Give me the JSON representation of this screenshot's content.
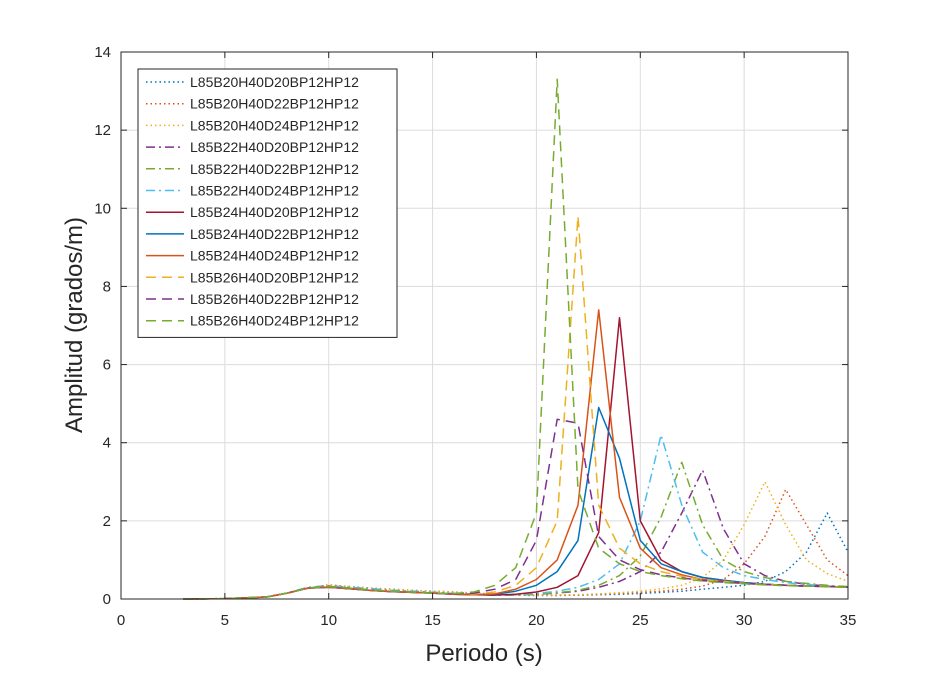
{
  "chart_data": {
    "type": "line",
    "title": "",
    "xlabel": "Periodo (s)",
    "ylabel": "Amplitud (grados/m)",
    "xlim": [
      0,
      35
    ],
    "ylim": [
      0,
      14
    ],
    "xticks": [
      0,
      5,
      10,
      15,
      20,
      25,
      30,
      35
    ],
    "yticks": [
      0,
      2,
      4,
      6,
      8,
      10,
      12,
      14
    ],
    "grid": true,
    "legend_position": "top-left",
    "series": [
      {
        "name": "L85B20H40D20BP12HP12",
        "color": "#0072BD",
        "dash": "dotted",
        "x": [
          3,
          5,
          7,
          8,
          9,
          10,
          11,
          12,
          13,
          14,
          15,
          16,
          17,
          18,
          19,
          20,
          21,
          22,
          23,
          24,
          25,
          26,
          27,
          28,
          29,
          30,
          31,
          32,
          33,
          34,
          35
        ],
        "y": [
          0,
          0.01,
          0.05,
          0.15,
          0.28,
          0.35,
          0.32,
          0.28,
          0.25,
          0.22,
          0.2,
          0.18,
          0.15,
          0.12,
          0.1,
          0.09,
          0.09,
          0.1,
          0.11,
          0.12,
          0.14,
          0.17,
          0.2,
          0.25,
          0.3,
          0.35,
          0.45,
          0.7,
          1.2,
          2.2,
          1.2
        ]
      },
      {
        "name": "L85B20H40D22BP12HP12",
        "color": "#D95319",
        "dash": "dotted",
        "x": [
          3,
          5,
          7,
          8,
          9,
          10,
          11,
          12,
          13,
          14,
          15,
          16,
          17,
          18,
          19,
          20,
          21,
          22,
          23,
          24,
          25,
          26,
          27,
          28,
          29,
          30,
          31,
          32,
          33,
          34,
          35
        ],
        "y": [
          0,
          0.01,
          0.05,
          0.15,
          0.28,
          0.36,
          0.32,
          0.28,
          0.25,
          0.22,
          0.2,
          0.18,
          0.15,
          0.12,
          0.1,
          0.1,
          0.1,
          0.1,
          0.12,
          0.14,
          0.17,
          0.2,
          0.25,
          0.33,
          0.5,
          0.9,
          1.6,
          2.8,
          1.9,
          1.0,
          0.6
        ]
      },
      {
        "name": "L85B20H40D24BP12HP12",
        "color": "#EDB120",
        "dash": "dotted",
        "x": [
          3,
          5,
          7,
          8,
          9,
          10,
          11,
          12,
          13,
          14,
          15,
          16,
          17,
          18,
          19,
          20,
          21,
          22,
          23,
          24,
          25,
          26,
          27,
          28,
          29,
          30,
          31,
          32,
          33,
          34,
          35
        ],
        "y": [
          0,
          0.01,
          0.05,
          0.15,
          0.28,
          0.35,
          0.32,
          0.28,
          0.25,
          0.22,
          0.2,
          0.18,
          0.15,
          0.12,
          0.1,
          0.1,
          0.1,
          0.11,
          0.13,
          0.16,
          0.2,
          0.26,
          0.35,
          0.55,
          1.0,
          1.9,
          3.0,
          1.9,
          1.0,
          0.65,
          0.45
        ]
      },
      {
        "name": "L85B22H40D20BP12HP12",
        "color": "#7E2F8E",
        "dash": "dashdot",
        "x": [
          3,
          5,
          7,
          8,
          9,
          10,
          11,
          12,
          13,
          14,
          15,
          16,
          17,
          18,
          19,
          20,
          21,
          22,
          23,
          24,
          25,
          26,
          27,
          28,
          29,
          30,
          31,
          32,
          33,
          34,
          35
        ],
        "y": [
          0,
          0.01,
          0.05,
          0.15,
          0.3,
          0.33,
          0.3,
          0.26,
          0.22,
          0.2,
          0.17,
          0.14,
          0.12,
          0.1,
          0.1,
          0.12,
          0.15,
          0.2,
          0.3,
          0.45,
          0.7,
          1.2,
          2.2,
          3.3,
          1.8,
          0.9,
          0.6,
          0.45,
          0.38,
          0.33,
          0.3
        ]
      },
      {
        "name": "L85B22H40D22BP12HP12",
        "color": "#77AC30",
        "dash": "dashdot",
        "x": [
          3,
          5,
          7,
          8,
          9,
          10,
          11,
          12,
          13,
          14,
          15,
          16,
          17,
          18,
          19,
          20,
          21,
          22,
          23,
          24,
          25,
          26,
          27,
          28,
          29,
          30,
          31,
          32,
          33,
          34,
          35
        ],
        "y": [
          0,
          0.01,
          0.05,
          0.15,
          0.3,
          0.34,
          0.3,
          0.26,
          0.22,
          0.2,
          0.17,
          0.14,
          0.12,
          0.1,
          0.1,
          0.12,
          0.16,
          0.22,
          0.35,
          0.6,
          1.1,
          2.1,
          3.5,
          1.9,
          1.0,
          0.7,
          0.55,
          0.45,
          0.4,
          0.35,
          0.32
        ]
      },
      {
        "name": "L85B22H40D24BP12HP12",
        "color": "#4DBEEE",
        "dash": "dashdot",
        "x": [
          3,
          5,
          7,
          8,
          9,
          10,
          11,
          12,
          13,
          14,
          15,
          16,
          17,
          18,
          19,
          20,
          21,
          22,
          23,
          24,
          25,
          26,
          27,
          28,
          29,
          30,
          31,
          32,
          33,
          34,
          35
        ],
        "y": [
          0,
          0.01,
          0.05,
          0.15,
          0.3,
          0.33,
          0.3,
          0.26,
          0.22,
          0.2,
          0.17,
          0.14,
          0.12,
          0.1,
          0.11,
          0.14,
          0.2,
          0.3,
          0.5,
          0.9,
          2.0,
          4.2,
          2.4,
          1.2,
          0.8,
          0.6,
          0.5,
          0.42,
          0.37,
          0.33,
          0.3
        ]
      },
      {
        "name": "L85B24H40D20BP12HP12",
        "color": "#A2142F",
        "dash": "solid",
        "x": [
          3,
          5,
          7,
          8,
          9,
          10,
          11,
          12,
          13,
          14,
          15,
          16,
          17,
          18,
          19,
          20,
          21,
          22,
          23,
          24,
          25,
          26,
          27,
          28,
          29,
          30,
          31,
          32,
          33,
          34,
          35
        ],
        "y": [
          0,
          0.01,
          0.05,
          0.15,
          0.28,
          0.3,
          0.26,
          0.22,
          0.19,
          0.17,
          0.15,
          0.12,
          0.11,
          0.1,
          0.12,
          0.18,
          0.3,
          0.6,
          1.7,
          7.2,
          2.0,
          1.0,
          0.7,
          0.55,
          0.48,
          0.42,
          0.38,
          0.35,
          0.33,
          0.32,
          0.3
        ]
      },
      {
        "name": "L85B24H40D22BP12HP12",
        "color": "#0072BD",
        "dash": "solid",
        "x": [
          3,
          5,
          7,
          8,
          9,
          10,
          11,
          12,
          13,
          14,
          15,
          16,
          17,
          18,
          19,
          20,
          21,
          22,
          23,
          24,
          25,
          26,
          27,
          28,
          29,
          30,
          31,
          32,
          33,
          34,
          35
        ],
        "y": [
          0,
          0.01,
          0.05,
          0.15,
          0.28,
          0.3,
          0.26,
          0.22,
          0.19,
          0.17,
          0.15,
          0.12,
          0.11,
          0.12,
          0.2,
          0.35,
          0.7,
          1.5,
          4.9,
          3.6,
          1.5,
          0.9,
          0.7,
          0.55,
          0.48,
          0.42,
          0.38,
          0.35,
          0.33,
          0.32,
          0.3
        ]
      },
      {
        "name": "L85B24H40D24BP12HP12",
        "color": "#D95319",
        "dash": "solid",
        "x": [
          3,
          5,
          7,
          8,
          9,
          10,
          11,
          12,
          13,
          14,
          15,
          16,
          17,
          18,
          19,
          20,
          21,
          22,
          23,
          24,
          25,
          26,
          27,
          28,
          29,
          30,
          31,
          32,
          33,
          34,
          35
        ],
        "y": [
          0,
          0.01,
          0.05,
          0.15,
          0.28,
          0.3,
          0.26,
          0.22,
          0.19,
          0.17,
          0.15,
          0.12,
          0.11,
          0.13,
          0.25,
          0.5,
          1.0,
          2.4,
          7.4,
          2.6,
          1.3,
          0.8,
          0.62,
          0.5,
          0.45,
          0.4,
          0.37,
          0.35,
          0.33,
          0.32,
          0.3
        ]
      },
      {
        "name": "L85B26H40D20BP12HP12",
        "color": "#EDB120",
        "dash": "dashed",
        "x": [
          3,
          5,
          7,
          8,
          9,
          10,
          11,
          12,
          13,
          14,
          15,
          16,
          17,
          18,
          19,
          20,
          21,
          22,
          23,
          24,
          25,
          26,
          27,
          28,
          29,
          30,
          31,
          32,
          33,
          34,
          35
        ],
        "y": [
          0,
          0.01,
          0.05,
          0.15,
          0.28,
          0.32,
          0.28,
          0.23,
          0.2,
          0.18,
          0.15,
          0.13,
          0.13,
          0.18,
          0.35,
          0.8,
          2.0,
          9.8,
          2.4,
          1.3,
          0.9,
          0.7,
          0.58,
          0.5,
          0.45,
          0.4,
          0.37,
          0.35,
          0.33,
          0.32,
          0.3
        ]
      },
      {
        "name": "L85B26H40D22BP12HP12",
        "color": "#7E2F8E",
        "dash": "dashed",
        "x": [
          3,
          5,
          7,
          8,
          9,
          10,
          11,
          12,
          13,
          14,
          15,
          16,
          17,
          18,
          19,
          20,
          21,
          22,
          23,
          24,
          25,
          26,
          27,
          28,
          29,
          30,
          31,
          32,
          33,
          34,
          35
        ],
        "y": [
          0,
          0.01,
          0.05,
          0.15,
          0.28,
          0.32,
          0.28,
          0.23,
          0.2,
          0.18,
          0.15,
          0.13,
          0.15,
          0.25,
          0.5,
          1.5,
          4.6,
          4.5,
          1.6,
          1.0,
          0.75,
          0.62,
          0.54,
          0.47,
          0.43,
          0.4,
          0.37,
          0.35,
          0.33,
          0.32,
          0.3
        ]
      },
      {
        "name": "L85B26H40D24BP12HP12",
        "color": "#77AC30",
        "dash": "dashed",
        "x": [
          3,
          5,
          7,
          8,
          9,
          10,
          11,
          12,
          13,
          14,
          15,
          16,
          17,
          18,
          19,
          20,
          21,
          22,
          23,
          24,
          25,
          26,
          27,
          28,
          29,
          30,
          31,
          32,
          33,
          34,
          35
        ],
        "y": [
          0,
          0.01,
          0.05,
          0.15,
          0.28,
          0.32,
          0.28,
          0.23,
          0.2,
          0.18,
          0.15,
          0.14,
          0.18,
          0.35,
          0.8,
          2.2,
          13.3,
          2.8,
          1.3,
          0.9,
          0.7,
          0.6,
          0.52,
          0.46,
          0.42,
          0.39,
          0.36,
          0.34,
          0.33,
          0.32,
          0.3
        ]
      }
    ]
  }
}
